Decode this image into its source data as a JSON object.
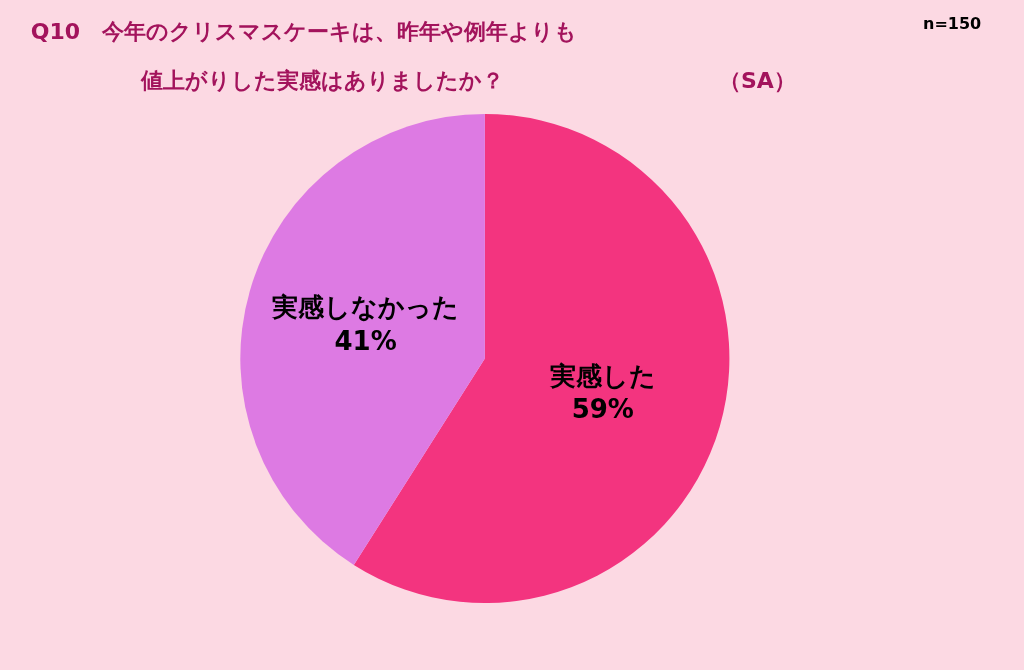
{
  "chart_data": {
    "type": "pie",
    "title": "Q10　今年のクリスマスケーキは、昨年や例年よりも",
    "subtitle": "値上がりした実感はありましたか？",
    "annotations": [
      "（SA）",
      "n=150"
    ],
    "categories": [
      "実感した",
      "実感しなかった"
    ],
    "values": [
      59,
      41
    ],
    "value_labels": [
      "59%",
      "41%"
    ],
    "colors": [
      "#f3347f",
      "#dd7ae3"
    ],
    "legend": false
  }
}
